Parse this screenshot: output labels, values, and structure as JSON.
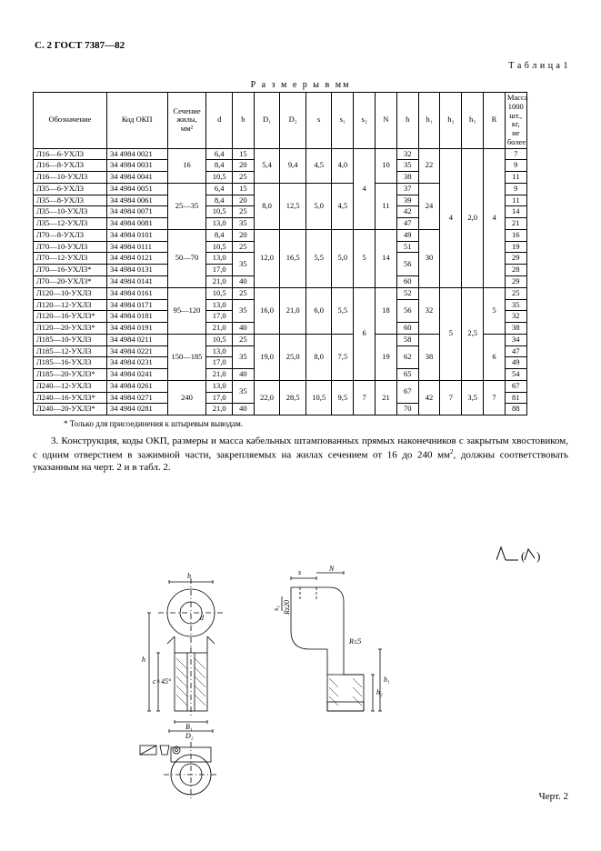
{
  "header": "С. 2 ГОСТ 7387—82",
  "tableLabel": "Т а б л и ц а  1",
  "tableCaption": "Р а з м е р ы  в мм",
  "columns": [
    "Обозначение",
    "Код ОКП",
    "Сечение\nжилы,\nмм²",
    "d",
    "b",
    "D₁",
    "D₂",
    "s",
    "s₁",
    "s₂",
    "N",
    "h",
    "h₁",
    "h₂",
    "h₃",
    "R",
    "Масса\n1000 шт.,\nкг, не\nболее"
  ],
  "groups": [
    {
      "sec": "16",
      "D1": "5,4",
      "D2": "9,4",
      "s": "4,5",
      "s1": "4,0",
      "s2": "4",
      "N": "10",
      "h1": "22",
      "h2": "4",
      "h3": "2,0",
      "R": "4",
      "rows": [
        {
          "o": "Л16—6-УХЛ3",
          "k": "34 4984 0021",
          "d": "6,4",
          "b": "15",
          "h": "32",
          "m": "7"
        },
        {
          "o": "Л16—8-УХЛ3",
          "k": "34 4984 0031",
          "d": "8,4",
          "b": "20",
          "h": "35",
          "m": "9"
        },
        {
          "o": "Л16—10-УХЛ3",
          "k": "34 4984 0041",
          "d": "10,5",
          "b": "25",
          "h": "38",
          "m": "11"
        }
      ]
    },
    {
      "sec": "25—35",
      "D1": "8,0",
      "D2": "12,5",
      "s": "5,0",
      "s1": "4,5",
      "N": "11",
      "h1": "24",
      "rows": [
        {
          "o": "Л35—6-УХЛ3",
          "k": "34 4984 0051",
          "d": "6,4",
          "b": "15",
          "h": "37",
          "m": "9"
        },
        {
          "o": "Л35—8-УХЛ3",
          "k": "34 4984 0061",
          "d": "8,4",
          "b": "20",
          "h": "39",
          "m": "11"
        },
        {
          "o": "Л35—10-УХЛ3",
          "k": "34 4984 0071",
          "d": "10,5",
          "b": "25",
          "h": "42",
          "m": "14"
        },
        {
          "o": "Л35—12-УХЛ3",
          "k": "34 4984 0081",
          "d": "13,0",
          "b": "35",
          "h": "47",
          "m": "21"
        }
      ]
    },
    {
      "sec": "50—70",
      "D1": "12,0",
      "D2": "16,5",
      "s": "5,5",
      "s1": "5,0",
      "s2": "5",
      "N": "14",
      "h1": "30",
      "rows": [
        {
          "o": "Л70—8-УХЛ3",
          "k": "34 4984 0101",
          "d": "8,4",
          "b": "20",
          "h": "49",
          "m": "16"
        },
        {
          "o": "Л70—10-УХЛ3",
          "k": "34 4984 0111",
          "d": "10,5",
          "b": "25",
          "h": "51",
          "m": "19"
        },
        {
          "o": "Л70—12-УХЛ3",
          "k": "34 4984 0121",
          "d": "13,0",
          "b": "35",
          "bspan": 2,
          "h": "56",
          "hspan": 2,
          "m": "29"
        },
        {
          "o": "Л70—16-УХЛ3*",
          "k": "34 4984 0131",
          "d": "17,0",
          "m": "28"
        },
        {
          "o": "Л70—20-УХЛ3*",
          "k": "34 4984 0141",
          "d": "21,0",
          "b": "40",
          "h": "60",
          "m": "29"
        }
      ]
    },
    {
      "sec": "95—120",
      "D1": "16,0",
      "D2": "21,0",
      "s": "6,0",
      "s1": "5,5",
      "s2": "6",
      "N": "18",
      "h1": "32",
      "h2": "5",
      "h3": "2,5",
      "R": "5",
      "rows": [
        {
          "o": "Л120—10-УХЛ3",
          "k": "34 4984 0161",
          "d": "10,5",
          "b": "25",
          "h": "52",
          "m": "25"
        },
        {
          "o": "Л120—12-УХЛ3",
          "k": "34 4984 0171",
          "d": "13,0",
          "b": "35",
          "bspan": 2,
          "h": "56",
          "hspan": 2,
          "m": "35"
        },
        {
          "o": "Л120—16-УХЛ3*",
          "k": "34 4984 0181",
          "d": "17,0",
          "m": "32"
        },
        {
          "o": "Л120—20-УХЛ3*",
          "k": "34 4984 0191",
          "d": "21,0",
          "b": "40",
          "h": "60",
          "m": "38"
        }
      ]
    },
    {
      "sec": "150—185",
      "D1": "19,0",
      "D2": "25,0",
      "s": "8,0",
      "s1": "7,5",
      "N": "19",
      "h1": "38",
      "R": "6",
      "rows": [
        {
          "o": "Л185—10-УХЛ3",
          "k": "34 4984 0211",
          "d": "10,5",
          "b": "25",
          "h": "58",
          "m": "34"
        },
        {
          "o": "Л185—12-УХЛ3",
          "k": "34 4984 0221",
          "d": "13,0",
          "b": "35",
          "bspan": 2,
          "h": "62",
          "hspan": 2,
          "m": "47"
        },
        {
          "o": "Л185—16-УХЛ3",
          "k": "34 4984 0231",
          "d": "17,0",
          "m": "49"
        },
        {
          "o": "Л185—20-УХЛ3*",
          "k": "34 4984 0241",
          "d": "21,0",
          "b": "40",
          "h": "65",
          "m": "54"
        }
      ]
    },
    {
      "sec": "240",
      "D1": "22,0",
      "D2": "28,5",
      "s": "10,5",
      "s1": "9,5",
      "s2": "7",
      "N": "21",
      "h1": "42",
      "h2": "7",
      "h3": "3,5",
      "R": "7",
      "rows": [
        {
          "o": "Л240—12-УХЛ3",
          "k": "34 4984 0261",
          "d": "13,0",
          "b": "35",
          "bspan": 2,
          "h": "67",
          "hspan": 2,
          "m": "67"
        },
        {
          "o": "Л240—16-УХЛ3*",
          "k": "34 4984 0271",
          "d": "17,0",
          "m": "81"
        },
        {
          "o": "Л240—20-УХЛ3*",
          "k": "34 4984 0281",
          "d": "21,0",
          "b": "40",
          "h": "70",
          "m": "88"
        }
      ]
    }
  ],
  "footnote": "* Только для присоединения к штыревым выводам.",
  "para3": {
    "a": "3.  Конструкция, коды ОКП, размеры и масса кабельных штампованных прямых наконечников с закрытым хвостовиком, с одним отверстием в зажимной части, закрепляемых на жилах сечением от 16 до 240 мм",
    "sup": "2",
    "b": ", должны соответствовать указанным на черт. 2 и в табл. 2."
  },
  "fig": {
    "b": "b",
    "h": "h",
    "c45": "c×45°",
    "B1": "B₁",
    "D2": "D₂",
    "d": "d",
    "s": "s",
    "N": "N",
    "s1": "s₁",
    "Rz": "Rz20",
    "R5": "R≤5",
    "h1": "h₁",
    "h2": "h₂"
  },
  "figCaption": "Черт. 2"
}
